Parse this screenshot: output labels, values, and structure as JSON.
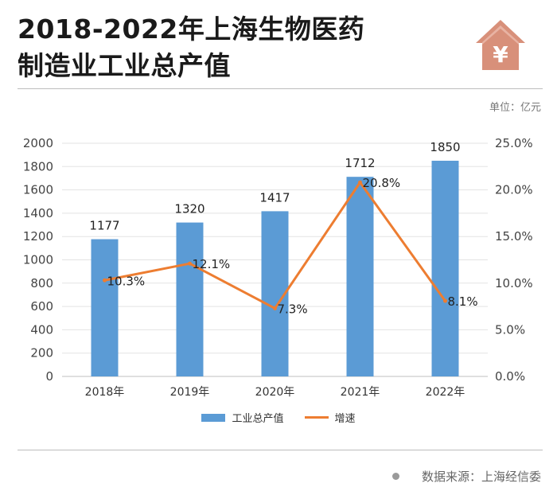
{
  "header": {
    "title_line1": "2018-2022年上海生物医药",
    "title_line2": "制造业工业总产值",
    "badge_symbol": "¥",
    "unit": "单位：亿元"
  },
  "chart_data": {
    "type": "bar",
    "categories": [
      "2018年",
      "2019年",
      "2020年",
      "2021年",
      "2022年"
    ],
    "series": [
      {
        "name": "工业总产值",
        "kind": "bar",
        "axis": "left",
        "color": "#5b9bd5",
        "values": [
          1177,
          1320,
          1417,
          1712,
          1850
        ],
        "labels": [
          "1177",
          "1320",
          "1417",
          "1712",
          "1850"
        ]
      },
      {
        "name": "增速",
        "kind": "line",
        "axis": "right",
        "color": "#ed7d31",
        "values": [
          10.3,
          12.1,
          7.3,
          20.8,
          8.1
        ],
        "labels": [
          "10.3%",
          "12.1%",
          "7.3%",
          "20.8%",
          "8.1%"
        ]
      }
    ],
    "y_left": {
      "min": 0,
      "max": 2000,
      "ticks": [
        "0",
        "200",
        "400",
        "600",
        "800",
        "1000",
        "1200",
        "1400",
        "1600",
        "1800",
        "2000"
      ]
    },
    "y_right": {
      "min": 0,
      "max": 25,
      "ticks": [
        "0.0%",
        "5.0%",
        "10.0%",
        "15.0%",
        "20.0%",
        "25.0%"
      ]
    },
    "grid": true,
    "legend": "bottom"
  },
  "legend": {
    "bar_label": "工业总产值",
    "line_label": "增速"
  },
  "footer": {
    "source": "数据来源：上海经信委"
  }
}
